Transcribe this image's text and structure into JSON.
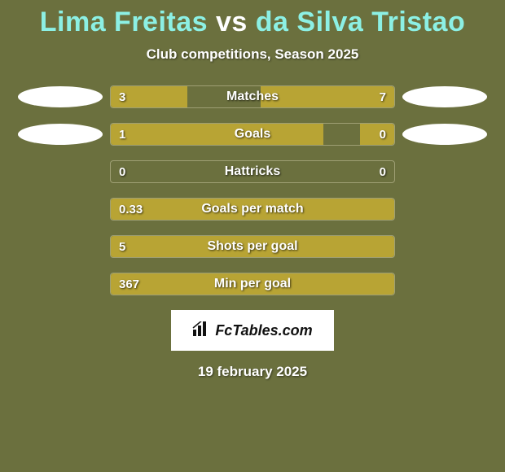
{
  "background_color": "#6b703e",
  "title": {
    "player_left": "Lima Freitas",
    "vs": " vs ",
    "player_right": "da Silva Tristao",
    "color_left": "#8cf0e4",
    "color_right": "#8cf0e4",
    "color_vs": "#ffffff",
    "fontsize": 34
  },
  "subtitle": "Club competitions, Season 2025",
  "bar_color": "#b8a434",
  "bar_border_color": "rgba(180,180,140,0.7)",
  "ellipse_color": "#ffffff",
  "stats": [
    {
      "label": "Matches",
      "left_val": "3",
      "right_val": "7",
      "left_pct": 27,
      "right_pct": 47,
      "show_ellipse": true
    },
    {
      "label": "Goals",
      "left_val": "1",
      "right_val": "0",
      "left_pct": 75,
      "right_pct": 12,
      "show_ellipse": true
    },
    {
      "label": "Hattricks",
      "left_val": "0",
      "right_val": "0",
      "left_pct": 0,
      "right_pct": 0,
      "show_ellipse": false
    },
    {
      "label": "Goals per match",
      "left_val": "0.33",
      "right_val": "",
      "left_pct": 100,
      "right_pct": 0,
      "full": true,
      "show_ellipse": false
    },
    {
      "label": "Shots per goal",
      "left_val": "5",
      "right_val": "",
      "left_pct": 100,
      "right_pct": 0,
      "full": true,
      "show_ellipse": false
    },
    {
      "label": "Min per goal",
      "left_val": "367",
      "right_val": "",
      "left_pct": 100,
      "right_pct": 0,
      "full": true,
      "show_ellipse": false
    }
  ],
  "logo": {
    "text": "FcTables.com",
    "icon": "bars-icon"
  },
  "date": "19 february 2025"
}
